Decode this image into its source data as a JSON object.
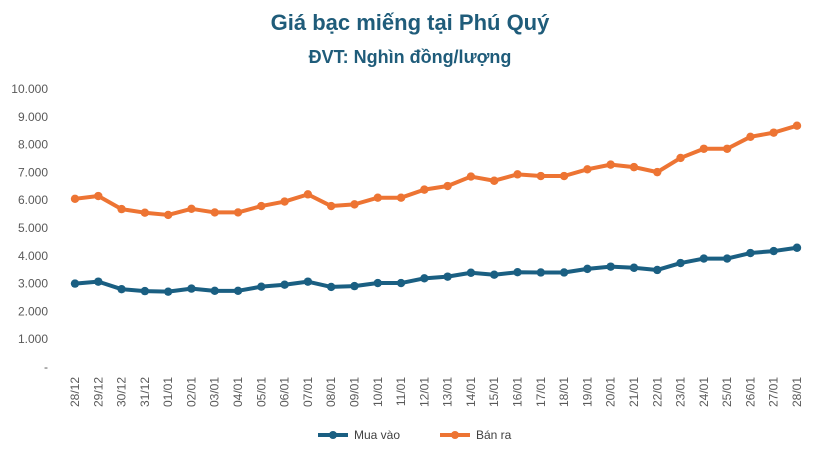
{
  "chart_data": {
    "type": "line",
    "title": "Giá bạc miếng tại Phú Quý",
    "subtitle": "ĐVT: Nghìn đồng/lượng",
    "xlabel": "",
    "ylabel": "",
    "ylim": [
      0,
      10000
    ],
    "yticks": [
      "-",
      "1.000",
      "2.000",
      "3.000",
      "4.000",
      "5.000",
      "6.000",
      "7.000",
      "8.000",
      "9.000",
      "10.000"
    ],
    "grid": false,
    "legend": "bottom",
    "categories": [
      "28/12",
      "29/12",
      "30/12",
      "31/12",
      "01/01",
      "02/01",
      "03/01",
      "04/01",
      "05/01",
      "06/01",
      "07/01",
      "08/01",
      "09/01",
      "10/01",
      "11/01",
      "12/01",
      "13/01",
      "14/01",
      "15/01",
      "16/01",
      "17/01",
      "18/01",
      "19/01",
      "20/01",
      "21/01",
      "22/01",
      "23/01",
      "24/01",
      "25/01",
      "26/01",
      "27/01",
      "28/01"
    ],
    "series": [
      {
        "name": "Mua vào",
        "color": "#1a5f82",
        "values": [
          3000,
          3070,
          2800,
          2730,
          2710,
          2820,
          2740,
          2740,
          2890,
          2960,
          3070,
          2880,
          2910,
          3020,
          3020,
          3190,
          3250,
          3390,
          3320,
          3410,
          3400,
          3400,
          3530,
          3610,
          3570,
          3490,
          3740,
          3900,
          3900,
          4100,
          4170,
          4290
        ]
      },
      {
        "name": "Bán ra",
        "color": "#ed7433",
        "values": [
          6050,
          6150,
          5680,
          5550,
          5470,
          5690,
          5560,
          5560,
          5790,
          5950,
          6210,
          5790,
          5850,
          6090,
          6090,
          6380,
          6510,
          6850,
          6700,
          6930,
          6870,
          6870,
          7110,
          7280,
          7190,
          7010,
          7520,
          7850,
          7850,
          8280,
          8430,
          8680
        ]
      }
    ]
  }
}
